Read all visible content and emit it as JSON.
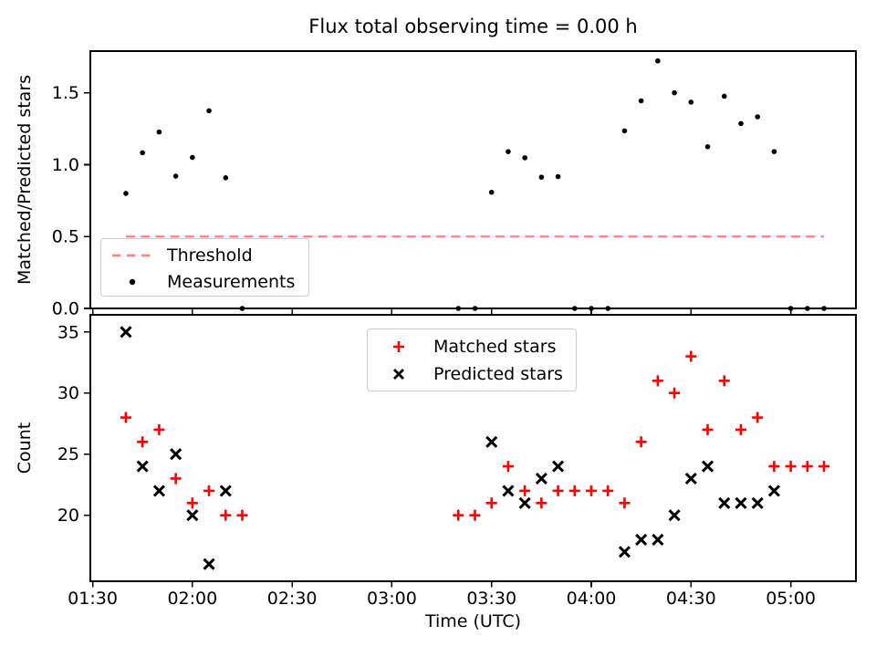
{
  "colors": {
    "threshold": "#fc8080",
    "matched": "#ff0000",
    "predicted": "#000000",
    "measurements": "#000000",
    "axis": "#000000"
  },
  "chart_data": {
    "type": "scatter",
    "title": "Flux total observing time = 0.00 h",
    "x_axis": {
      "label": "Time (UTC)",
      "tick_labels": [
        "01:30",
        "02:00",
        "02:30",
        "03:00",
        "03:30",
        "04:00",
        "04:30",
        "05:00"
      ],
      "tick_minutes": [
        0,
        30,
        60,
        90,
        120,
        150,
        180,
        210
      ],
      "range_minutes": [
        -0.7,
        229.6
      ]
    },
    "times": [
      "01:40",
      "01:45",
      "01:50",
      "01:55",
      "02:00",
      "02:05",
      "02:10",
      "02:15",
      "03:20",
      "03:25",
      "03:30",
      "03:35",
      "03:40",
      "03:45",
      "03:50",
      "03:55",
      "04:00",
      "04:05",
      "04:10",
      "04:15",
      "04:20",
      "04:25",
      "04:30",
      "04:35",
      "04:40",
      "04:45",
      "04:50",
      "04:55",
      "05:00",
      "05:05",
      "05:10"
    ],
    "minutes": [
      10,
      15,
      20,
      25,
      30,
      35,
      40,
      45,
      110,
      115,
      120,
      125,
      130,
      135,
      140,
      145,
      150,
      155,
      160,
      165,
      170,
      175,
      180,
      185,
      190,
      195,
      200,
      205,
      210,
      215,
      220
    ],
    "panels": [
      {
        "name": "ratio",
        "ylabel": "Matched/Predicted stars",
        "ytick_labels": [
          "0.0",
          "0.5",
          "1.0",
          "1.5"
        ],
        "yticks": [
          0.0,
          0.5,
          1.0,
          1.5
        ],
        "ylim": [
          0,
          1.79
        ],
        "grid": false,
        "legend": {
          "position": "lower left",
          "entries": [
            {
              "label": "Threshold",
              "marker": "dashed-line",
              "color": "#fc8080"
            },
            {
              "label": "Measurements",
              "marker": "dot",
              "color": "#000000"
            }
          ]
        },
        "threshold_value": 0.5,
        "series": [
          {
            "name": "Measurements",
            "marker": "dot",
            "color": "#000000",
            "values": [
              0.8,
              1.083,
              1.227,
              0.92,
              1.05,
              1.375,
              0.909,
              0.0,
              0.0,
              0.0,
              0.808,
              1.091,
              1.048,
              0.913,
              0.917,
              0.0,
              0.0,
              0.0,
              1.235,
              1.444,
              1.722,
              1.5,
              1.435,
              1.125,
              1.476,
              1.286,
              1.333,
              1.091,
              0.0,
              0.0,
              0.0
            ]
          }
        ]
      },
      {
        "name": "counts",
        "ylabel": "Count",
        "ytick_labels": [
          "20",
          "25",
          "30",
          "35"
        ],
        "yticks": [
          20,
          25,
          30,
          35
        ],
        "ylim": [
          14.6,
          36.4
        ],
        "grid": false,
        "legend": {
          "position": "upper center",
          "entries": [
            {
              "label": "Matched stars",
              "marker": "plus",
              "color": "#ff0000"
            },
            {
              "label": "Predicted stars",
              "marker": "x",
              "color": "#000000"
            }
          ]
        },
        "series": [
          {
            "name": "Matched stars",
            "marker": "plus",
            "color": "#ff0000",
            "values": [
              28,
              26,
              27,
              23,
              21,
              22,
              20,
              20,
              20,
              20,
              21,
              24,
              22,
              21,
              22,
              22,
              22,
              22,
              21,
              26,
              31,
              30,
              33,
              27,
              31,
              27,
              28,
              24,
              24,
              24,
              24
            ]
          },
          {
            "name": "Predicted stars",
            "marker": "x",
            "color": "#000000",
            "values": [
              35,
              24,
              22,
              25,
              20,
              16,
              22,
              null,
              null,
              null,
              26,
              22,
              21,
              23,
              24,
              null,
              null,
              null,
              17,
              18,
              18,
              20,
              23,
              24,
              21,
              21,
              21,
              22,
              null,
              null,
              null
            ]
          }
        ]
      }
    ]
  }
}
